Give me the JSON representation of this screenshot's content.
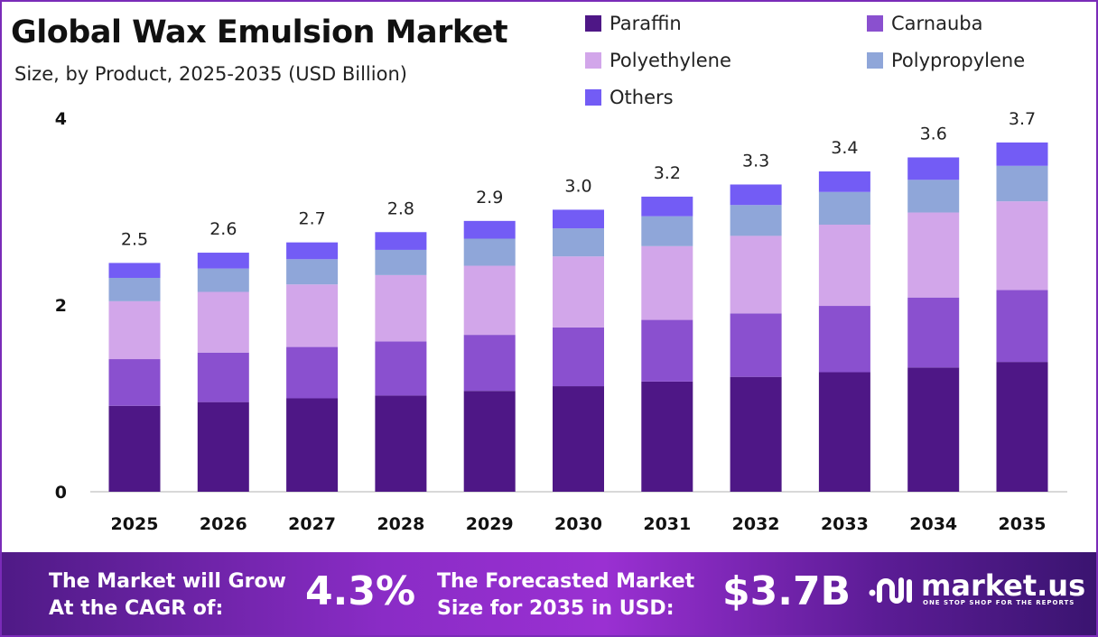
{
  "chart_data": {
    "type": "bar",
    "stacked": true,
    "title": "Global Wax Emulsion Market",
    "subtitle": "Size, by Product, 2025-2035 (USD Billion)",
    "xlabel": "",
    "ylabel": "",
    "ylim": [
      0,
      4
    ],
    "yticks": [
      "0",
      "2",
      "4"
    ],
    "grid": false,
    "legend_position": "top-right",
    "categories": [
      "2025",
      "2026",
      "2027",
      "2028",
      "2029",
      "2030",
      "2031",
      "2032",
      "2033",
      "2034",
      "2035"
    ],
    "totals": [
      "2.5",
      "2.6",
      "2.7",
      "2.8",
      "2.9",
      "3.0",
      "3.2",
      "3.3",
      "3.4",
      "3.6",
      "3.7"
    ],
    "series": [
      {
        "name": "Paraffin",
        "color": "#4e1786",
        "values": [
          0.92,
          0.96,
          1.0,
          1.03,
          1.08,
          1.13,
          1.18,
          1.23,
          1.28,
          1.33,
          1.39
        ]
      },
      {
        "name": "Carnauba",
        "color": "#8a50cf",
        "values": [
          0.5,
          0.53,
          0.55,
          0.58,
          0.6,
          0.63,
          0.66,
          0.68,
          0.71,
          0.75,
          0.77
        ]
      },
      {
        "name": "Polyethylene",
        "color": "#d2a6ea",
        "values": [
          0.62,
          0.65,
          0.67,
          0.71,
          0.74,
          0.76,
          0.79,
          0.83,
          0.87,
          0.91,
          0.95
        ]
      },
      {
        "name": "Polypropylene",
        "color": "#8fa6d9",
        "values": [
          0.25,
          0.25,
          0.27,
          0.27,
          0.29,
          0.3,
          0.32,
          0.33,
          0.35,
          0.35,
          0.38
        ]
      },
      {
        "name": "Others",
        "color": "#735cf5",
        "values": [
          0.16,
          0.17,
          0.18,
          0.19,
          0.19,
          0.2,
          0.21,
          0.22,
          0.22,
          0.24,
          0.25
        ]
      }
    ]
  },
  "footer": {
    "cagr_label": "The Market will Grow At the CAGR of:",
    "cagr_value": "4.3%",
    "forecast_label": "The Forecasted Market Size for 2035 in USD:",
    "forecast_value": "$3.7B",
    "brand": "market.us",
    "tagline": "ONE STOP SHOP FOR THE REPORTS"
  }
}
